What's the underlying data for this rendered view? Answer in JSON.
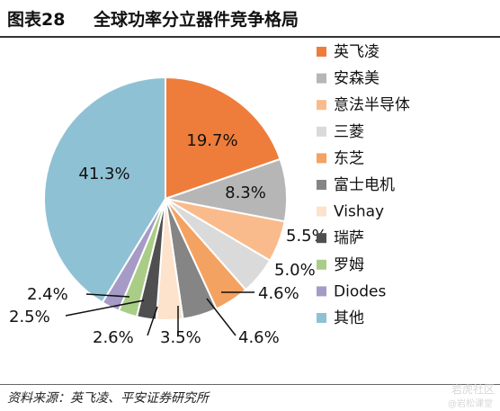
{
  "header": {
    "figure_no": "图表28",
    "title": "全球功率分立器件竞争格局"
  },
  "chart_data": {
    "type": "pie",
    "slices": [
      {
        "label": "英飞凌",
        "value": 19.7,
        "display": "19.7%",
        "color": "#ee7d3b"
      },
      {
        "label": "安森美",
        "value": 8.3,
        "display": "8.3%",
        "color": "#b6b6b6"
      },
      {
        "label": "意法半导体",
        "value": 5.5,
        "display": "5.5%",
        "color": "#f9bb8c"
      },
      {
        "label": "三菱",
        "value": 5.0,
        "display": "5.0%",
        "color": "#dadada"
      },
      {
        "label": "东芝",
        "value": 4.6,
        "display": "4.6%",
        "color": "#f4a261"
      },
      {
        "label": "富士电机",
        "value": 4.6,
        "display": "4.6%",
        "color": "#858585"
      },
      {
        "label": "Vishay",
        "value": 3.5,
        "display": "3.5%",
        "color": "#fde2cc"
      },
      {
        "label": "瑞萨",
        "value": 2.6,
        "display": "2.6%",
        "color": "#4f4f4f"
      },
      {
        "label": "罗姆",
        "value": 2.5,
        "display": "2.5%",
        "color": "#a9cd86"
      },
      {
        "label": "Diodes",
        "value": 2.4,
        "display": "2.4%",
        "color": "#a59bc6"
      },
      {
        "label": "其他",
        "value": 41.3,
        "display": "41.3%",
        "color": "#8fc1d5"
      }
    ],
    "legend_position": "right"
  },
  "footer": {
    "source": "资料来源：英飞凌、平安证券研究所"
  },
  "watermark": {
    "text": "岩虎社区",
    "sub": "@岩松课堂"
  }
}
